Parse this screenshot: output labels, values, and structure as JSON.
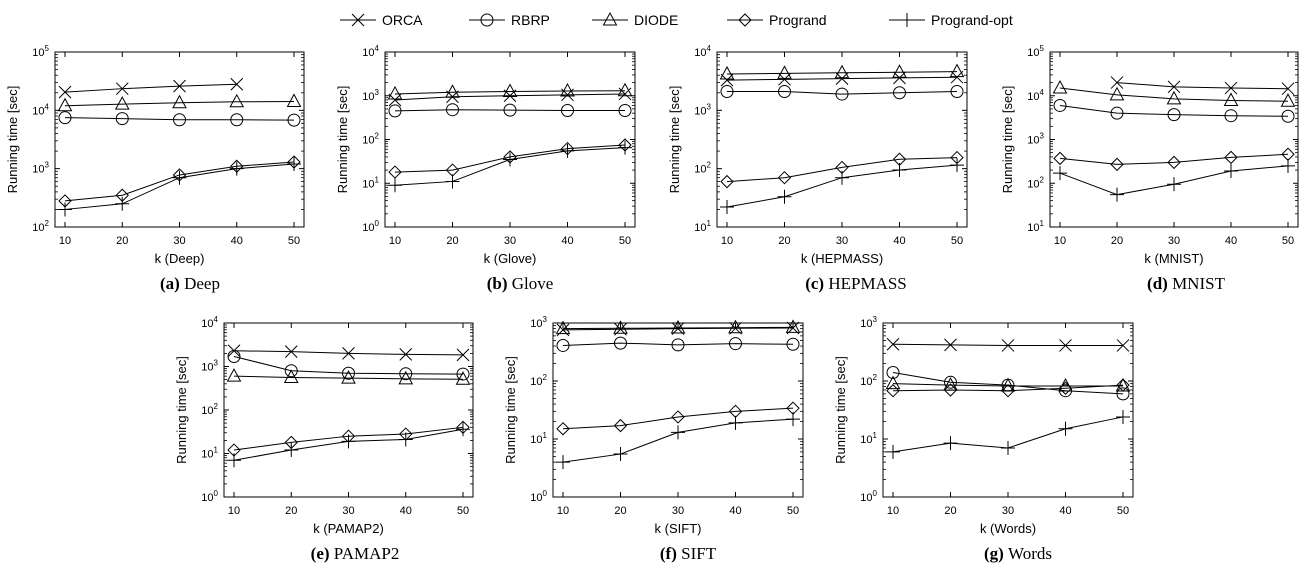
{
  "legend": [
    {
      "name": "ORCA",
      "marker": "x"
    },
    {
      "name": "RBRP",
      "marker": "circle"
    },
    {
      "name": "DIODE",
      "marker": "triangle"
    },
    {
      "name": "Progrand",
      "marker": "diamond"
    },
    {
      "name": "Progrand-opt",
      "marker": "plus"
    }
  ],
  "chart_data": [
    {
      "id": "a",
      "type": "line",
      "scale": "log",
      "caption_letter": "(a)",
      "caption_name": "Deep",
      "xlabel": "k (Deep)",
      "ylabel": "Running time [sec]",
      "x": [
        10,
        20,
        30,
        40,
        50
      ],
      "xticks": [
        "10",
        "20",
        "30",
        "40",
        "50"
      ],
      "ylim_exp": [
        2,
        5
      ],
      "series": [
        {
          "name": "ORCA",
          "x": [
            10,
            20,
            30,
            40
          ],
          "values": [
            20500,
            23500,
            26000,
            28000
          ]
        },
        {
          "name": "RBRP",
          "x": [
            10,
            20,
            30,
            40,
            50
          ],
          "values": [
            7500,
            7200,
            6900,
            6900,
            6800
          ]
        },
        {
          "name": "DIODE",
          "x": [
            10,
            20,
            30,
            40,
            50
          ],
          "values": [
            12000,
            12800,
            13500,
            14000,
            14200
          ]
        },
        {
          "name": "Progrand",
          "x": [
            10,
            20,
            30,
            40,
            50
          ],
          "values": [
            280,
            350,
            780,
            1100,
            1300
          ]
        },
        {
          "name": "Progrand-opt",
          "x": [
            10,
            20,
            30,
            40,
            50
          ],
          "values": [
            200,
            250,
            700,
            1000,
            1200
          ]
        }
      ]
    },
    {
      "id": "b",
      "type": "line",
      "scale": "log",
      "caption_letter": "(b)",
      "caption_name": "Glove",
      "xlabel": "k (Glove)",
      "ylabel": "Running time [sec]",
      "x": [
        10,
        20,
        30,
        40,
        50
      ],
      "xticks": [
        "10",
        "20",
        "30",
        "40",
        "50"
      ],
      "ylim_exp": [
        0,
        4
      ],
      "series": [
        {
          "name": "ORCA",
          "x": [
            10,
            20,
            30,
            40,
            50
          ],
          "values": [
            800,
            950,
            1000,
            1050,
            1100
          ]
        },
        {
          "name": "RBRP",
          "x": [
            10,
            20,
            30,
            40,
            50
          ],
          "values": [
            450,
            480,
            470,
            460,
            460
          ]
        },
        {
          "name": "DIODE",
          "x": [
            10,
            20,
            30,
            40,
            50
          ],
          "values": [
            1100,
            1200,
            1250,
            1280,
            1300
          ]
        },
        {
          "name": "Progrand",
          "x": [
            10,
            20,
            30,
            40,
            50
          ],
          "values": [
            18,
            20,
            40,
            62,
            75
          ]
        },
        {
          "name": "Progrand-opt",
          "x": [
            10,
            20,
            30,
            40,
            50
          ],
          "values": [
            9,
            11,
            35,
            55,
            65
          ]
        }
      ]
    },
    {
      "id": "c",
      "type": "line",
      "scale": "log",
      "caption_letter": "(c)",
      "caption_name": "HEPMASS",
      "xlabel": "k (HEPMASS)",
      "ylabel": "Running time [sec]",
      "x": [
        10,
        20,
        30,
        40,
        50
      ],
      "xticks": [
        "10",
        "20",
        "30",
        "40",
        "50"
      ],
      "ylim_exp": [
        1,
        4
      ],
      "series": [
        {
          "name": "ORCA",
          "x": [
            10,
            20,
            30,
            40,
            50
          ],
          "values": [
            3300,
            3400,
            3500,
            3600,
            3700
          ]
        },
        {
          "name": "RBRP",
          "x": [
            10,
            20,
            30,
            40,
            50
          ],
          "values": [
            2100,
            2100,
            1900,
            2000,
            2100
          ]
        },
        {
          "name": "DIODE",
          "x": [
            10,
            20,
            30,
            40,
            50
          ],
          "values": [
            4200,
            4300,
            4400,
            4500,
            4600
          ]
        },
        {
          "name": "Progrand",
          "x": [
            10,
            20,
            30,
            40,
            50
          ],
          "values": [
            60,
            70,
            105,
            145,
            155
          ]
        },
        {
          "name": "Progrand-opt",
          "x": [
            10,
            20,
            30,
            40,
            50
          ],
          "values": [
            22,
            33,
            70,
            95,
            115
          ]
        }
      ]
    },
    {
      "id": "d",
      "type": "line",
      "scale": "log",
      "caption_letter": "(d)",
      "caption_name": "MNIST",
      "xlabel": "k (MNIST)",
      "ylabel": "Running time [sec]",
      "x": [
        10,
        20,
        30,
        40,
        50
      ],
      "xticks": [
        "10",
        "20",
        "30",
        "40",
        "50"
      ],
      "ylim_exp": [
        1,
        5
      ],
      "series": [
        {
          "name": "ORCA",
          "x": [
            20,
            30,
            40,
            50
          ],
          "values": [
            20000,
            16000,
            15000,
            14500
          ]
        },
        {
          "name": "RBRP",
          "x": [
            10,
            20,
            30,
            40,
            50
          ],
          "values": [
            6000,
            4000,
            3700,
            3500,
            3400
          ]
        },
        {
          "name": "DIODE",
          "x": [
            10,
            20,
            30,
            40,
            50
          ],
          "values": [
            15000,
            10500,
            8500,
            7800,
            7500
          ]
        },
        {
          "name": "Progrand",
          "x": [
            10,
            20,
            30,
            40,
            50
          ],
          "values": [
            370,
            270,
            300,
            390,
            460
          ]
        },
        {
          "name": "Progrand-opt",
          "x": [
            10,
            20,
            30,
            40,
            50
          ],
          "values": [
            170,
            55,
            95,
            190,
            250
          ]
        }
      ]
    },
    {
      "id": "e",
      "type": "line",
      "scale": "log",
      "caption_letter": "(e)",
      "caption_name": "PAMAP2",
      "xlabel": "k (PAMAP2)",
      "ylabel": "Running time [sec]",
      "x": [
        10,
        20,
        30,
        40,
        50
      ],
      "xticks": [
        "10",
        "20",
        "30",
        "40",
        "50"
      ],
      "ylim_exp": [
        0,
        4
      ],
      "series": [
        {
          "name": "ORCA",
          "x": [
            10,
            20,
            30,
            40,
            50
          ],
          "values": [
            2300,
            2200,
            2000,
            1900,
            1850
          ]
        },
        {
          "name": "RBRP",
          "x": [
            10,
            20,
            30,
            40,
            50
          ],
          "values": [
            1700,
            800,
            700,
            680,
            670
          ]
        },
        {
          "name": "DIODE",
          "x": [
            10,
            20,
            30,
            40,
            50
          ],
          "values": [
            600,
            560,
            540,
            520,
            510
          ]
        },
        {
          "name": "Progrand",
          "x": [
            10,
            20,
            30,
            40,
            50
          ],
          "values": [
            12,
            18,
            25,
            28,
            40
          ]
        },
        {
          "name": "Progrand-opt",
          "x": [
            10,
            20,
            30,
            40,
            50
          ],
          "values": [
            7,
            12,
            19,
            21,
            36
          ]
        }
      ]
    },
    {
      "id": "f",
      "type": "line",
      "scale": "log",
      "caption_letter": "(f)",
      "caption_name": "SIFT",
      "xlabel": "k (SIFT)",
      "ylabel": "Running time [sec]",
      "x": [
        10,
        20,
        30,
        40,
        50
      ],
      "xticks": [
        "10",
        "20",
        "30",
        "40",
        "50"
      ],
      "ylim_exp": [
        0,
        3
      ],
      "series": [
        {
          "name": "ORCA",
          "x": [
            10,
            20,
            30,
            40,
            50
          ],
          "values": [
            760,
            780,
            800,
            810,
            820
          ]
        },
        {
          "name": "RBRP",
          "x": [
            10,
            20,
            30,
            40,
            50
          ],
          "values": [
            410,
            450,
            420,
            440,
            430
          ]
        },
        {
          "name": "DIODE",
          "x": [
            10,
            20,
            30,
            40,
            50
          ],
          "values": [
            800,
            810,
            820,
            830,
            840
          ]
        },
        {
          "name": "Progrand",
          "x": [
            10,
            20,
            30,
            40,
            50
          ],
          "values": [
            15,
            17,
            24,
            30,
            34
          ]
        },
        {
          "name": "Progrand-opt",
          "x": [
            10,
            20,
            30,
            40,
            50
          ],
          "values": [
            4,
            5.5,
            13,
            19,
            22
          ]
        }
      ]
    },
    {
      "id": "g",
      "type": "line",
      "scale": "log",
      "caption_letter": "(g)",
      "caption_name": "Words",
      "xlabel": "k (Words)",
      "ylabel": "Running time [sec]",
      "x": [
        10,
        20,
        30,
        40,
        50
      ],
      "xticks": [
        "10",
        "20",
        "30",
        "40",
        "50"
      ],
      "ylim_exp": [
        0,
        3
      ],
      "series": [
        {
          "name": "ORCA",
          "x": [
            10,
            20,
            30,
            40,
            50
          ],
          "values": [
            430,
            420,
            410,
            410,
            410
          ]
        },
        {
          "name": "RBRP",
          "x": [
            10,
            20,
            30,
            40,
            50
          ],
          "values": [
            140,
            95,
            85,
            68,
            60
          ]
        },
        {
          "name": "DIODE",
          "x": [
            10,
            20,
            30,
            40,
            50
          ],
          "values": [
            90,
            85,
            82,
            82,
            82
          ]
        },
        {
          "name": "Progrand",
          "x": [
            10,
            20,
            30,
            40,
            50
          ],
          "values": [
            68,
            70,
            68,
            75,
            85
          ]
        },
        {
          "name": "Progrand-opt",
          "x": [
            10,
            20,
            30,
            40,
            50
          ],
          "values": [
            6,
            8.5,
            7,
            15,
            24
          ]
        }
      ]
    }
  ]
}
